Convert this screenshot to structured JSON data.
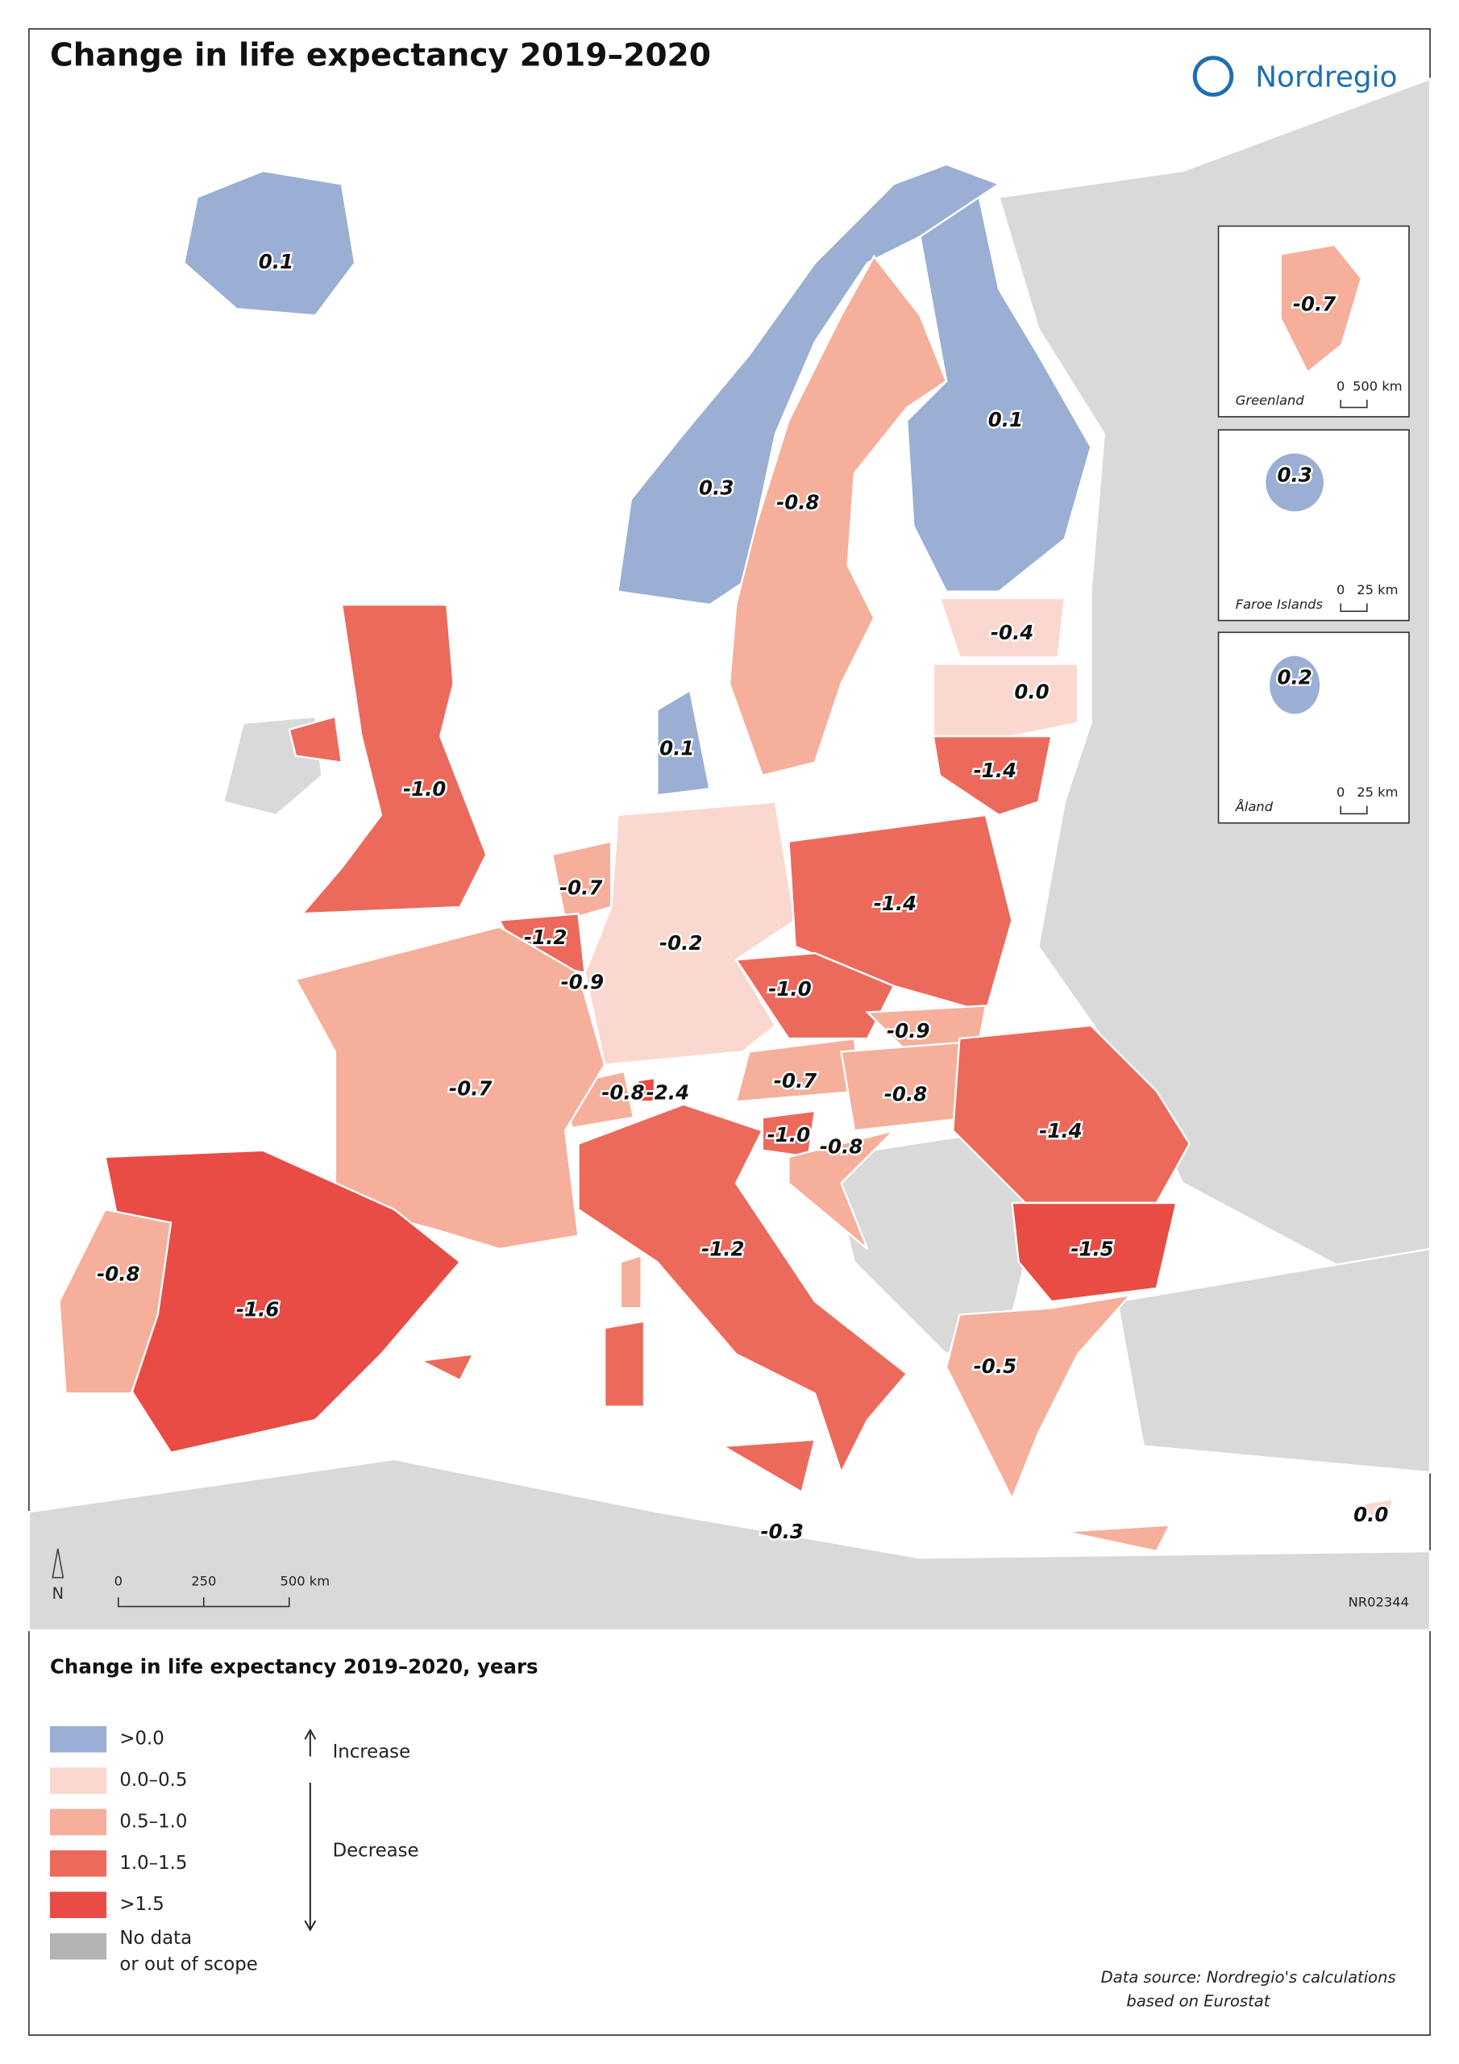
{
  "header": {
    "title": "Change in life expectancy 2019–2020",
    "logo": "Nordregio"
  },
  "map_labels": [
    "0.1",
    "0.3",
    "-0.8",
    "0.1",
    "-0.4",
    "0.0",
    "-1.4",
    "0.1",
    "-1.0",
    "-0.7",
    "-1.2",
    "-0.9",
    "-0.2",
    "-1.4",
    "-1.0",
    "-0.9",
    "-0.7",
    "-0.8",
    "-0.8",
    "-2.4",
    "-1.0",
    "-0.8",
    "-1.4",
    "-1.5",
    "-0.7",
    "-0.8",
    "-1.6",
    "-1.2",
    "-0.5",
    "-0.3",
    "0.0"
  ],
  "insets": [
    {
      "label": "-0.7",
      "name": "Greenland",
      "scale": [
        "0",
        "500 km"
      ]
    },
    {
      "label": "0.3",
      "name": "Faroe Islands",
      "scale": [
        "0",
        "25 km"
      ]
    },
    {
      "label": "0.2",
      "name": "Åland",
      "scale": [
        "0",
        "25 km"
      ]
    }
  ],
  "north": "N",
  "scale_bar": [
    "0",
    "250",
    "500 km"
  ],
  "map_code": "NR02344",
  "legend": {
    "title": "Change in life expectancy 2019–2020, years",
    "items": [
      {
        "label": ">0.0",
        "color": "#9aafd3"
      },
      {
        "label": "0.0–0.5",
        "color": "#fbd8cf"
      },
      {
        "label": "0.5–1.0",
        "color": "#f5af9a"
      },
      {
        "label": "1.0–1.5",
        "color": "#ec6a5c"
      },
      {
        "label": ">1.5",
        "color": "#e84c45"
      },
      {
        "label": [
          "No data",
          "or out of scope"
        ],
        "color": "#b3b3b3"
      }
    ],
    "increase": "Increase",
    "decrease": "Decrease"
  },
  "source": [
    "Data source: Nordregio's calculations",
    "based on Eurostat"
  ]
}
